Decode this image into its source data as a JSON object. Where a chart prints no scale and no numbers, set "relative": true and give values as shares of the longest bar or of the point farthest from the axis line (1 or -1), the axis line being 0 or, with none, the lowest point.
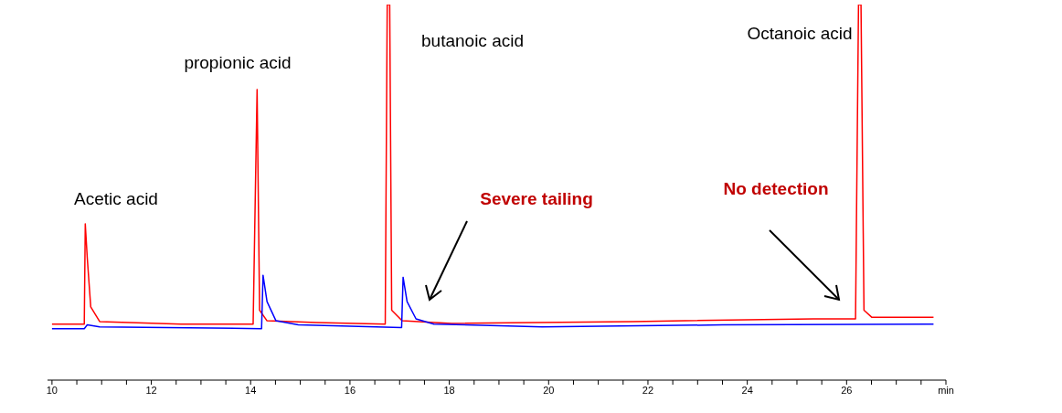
{
  "chart_data": {
    "type": "line",
    "relative": true,
    "xlim": [
      9.91,
      28
    ],
    "xticks": [
      10,
      {
        "value": 10.5,
        "label": null
      },
      {
        "value": 11,
        "label": null
      },
      {
        "value": 11.5,
        "label": null
      },
      12,
      {
        "value": 12.5,
        "label": null
      },
      {
        "value": 13,
        "label": null
      },
      {
        "value": 13.5,
        "label": null
      },
      14,
      {
        "value": 14.5,
        "label": null
      },
      {
        "value": 15,
        "label": null
      },
      {
        "value": 15.5,
        "label": null
      },
      16,
      {
        "value": 16.5,
        "label": null
      },
      {
        "value": 17,
        "label": null
      },
      {
        "value": 17.5,
        "label": null
      },
      18,
      {
        "value": 18.5,
        "label": null
      },
      {
        "value": 19,
        "label": null
      },
      {
        "value": 19.5,
        "label": null
      },
      20,
      {
        "value": 20.5,
        "label": null
      },
      {
        "value": 21,
        "label": null
      },
      {
        "value": 21.5,
        "label": null
      },
      22,
      {
        "value": 22.5,
        "label": null
      },
      {
        "value": 23,
        "label": null
      },
      {
        "value": 23.5,
        "label": null
      },
      24,
      {
        "value": 24.5,
        "label": null
      },
      {
        "value": 25,
        "label": null
      },
      {
        "value": 25.5,
        "label": null
      },
      26,
      {
        "value": 26.5,
        "label": null
      },
      {
        "value": 27,
        "label": null
      },
      {
        "value": 27.5,
        "label": null
      },
      {
        "value": 28,
        "label": "min"
      }
    ],
    "series": [
      {
        "color": "#ff0000",
        "x": [
          10,
          10.65,
          10.67,
          10.71,
          10.78,
          10.96,
          12.6,
          14.05,
          14.13,
          14.18,
          14.33,
          15.33,
          16.71,
          16.75,
          16.8,
          16.84,
          17.05,
          18.05,
          21.69,
          25.33,
          26.18,
          26.24,
          26.29,
          26.35,
          26.51,
          27.75
        ],
        "values": [
          0.149,
          0.149,
          0.416,
          0.326,
          0.195,
          0.156,
          0.149,
          0.149,
          0.774,
          0.186,
          0.158,
          0.153,
          0.149,
          1,
          1,
          0.186,
          0.158,
          0.151,
          0.156,
          0.163,
          0.163,
          1,
          1,
          0.186,
          0.167,
          0.167
        ]
      },
      {
        "color": "#0000ff",
        "x": [
          10,
          10.65,
          10.71,
          10.96,
          14.22,
          14.25,
          14.33,
          14.51,
          14.96,
          17.04,
          17.07,
          17.15,
          17.33,
          17.69,
          19.87,
          23.51,
          27.75
        ],
        "values": [
          0.137,
          0.137,
          0.147,
          0.142,
          0.137,
          0.279,
          0.209,
          0.158,
          0.147,
          0.14,
          0.274,
          0.209,
          0.163,
          0.149,
          0.142,
          0.147,
          0.149
        ]
      }
    ],
    "annotations": [
      "Acetic acid",
      "propionic acid",
      "butanoic acid",
      "Octanoic acid",
      "Severe tailing",
      "No detection"
    ],
    "marker": "none",
    "line_style": "solid",
    "grid": false
  }
}
